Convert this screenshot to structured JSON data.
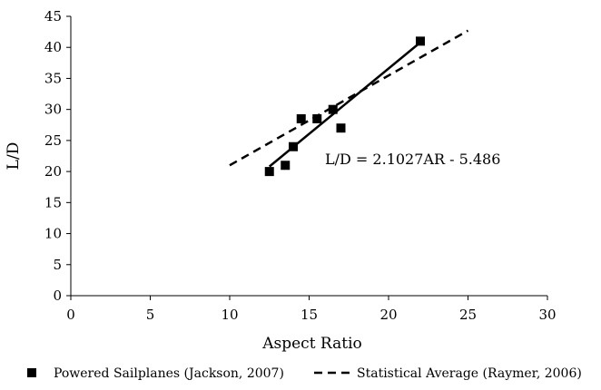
{
  "chart_data": {
    "type": "scatter",
    "title": "",
    "xlabel": "Aspect Ratio",
    "ylabel": "L/D",
    "xlim": [
      0,
      30
    ],
    "ylim": [
      0,
      45
    ],
    "xticks": [
      0,
      5,
      10,
      15,
      20,
      25,
      30
    ],
    "yticks": [
      0,
      5,
      10,
      15,
      20,
      25,
      30,
      35,
      40,
      45
    ],
    "grid": false,
    "legend_position": "bottom",
    "series": [
      {
        "name": "Powered Sailplanes (Jackson, 2007)",
        "kind": "scatter",
        "marker": "square",
        "color": "#000000",
        "points": [
          {
            "x": 12.5,
            "y": 20
          },
          {
            "x": 13.5,
            "y": 21
          },
          {
            "x": 14.0,
            "y": 24
          },
          {
            "x": 14.5,
            "y": 28.5
          },
          {
            "x": 15.5,
            "y": 28.5
          },
          {
            "x": 16.5,
            "y": 30
          },
          {
            "x": 17.0,
            "y": 27
          },
          {
            "x": 22.0,
            "y": 41
          }
        ]
      },
      {
        "name": "Statistical Average (Raymer, 2006)",
        "kind": "line",
        "dash": "dashed",
        "color": "#000000",
        "points": [
          {
            "x": 10,
            "y": 21
          },
          {
            "x": 25,
            "y": 42.7
          }
        ]
      }
    ],
    "trendline": {
      "kind": "line",
      "dash": "solid",
      "color": "#000000",
      "points": [
        {
          "x": 12.5,
          "y": 20.8
        },
        {
          "x": 22,
          "y": 40.8
        }
      ]
    },
    "annotations": [
      {
        "text": "L/D = 2.1027AR - 5.486",
        "x": 16,
        "y": 21.2
      }
    ]
  }
}
